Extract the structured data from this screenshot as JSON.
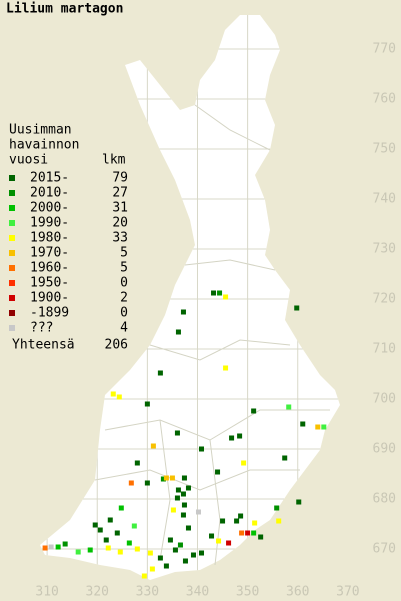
{
  "title": "Lilium martagon",
  "legend": {
    "heading": [
      "Uusimman",
      "havainnon",
      "vuosi"
    ],
    "count_heading": "lkm",
    "classes": [
      {
        "label": "2015-",
        "count": 79,
        "color": "#006400"
      },
      {
        "label": "2010-",
        "count": 27,
        "color": "#009000"
      },
      {
        "label": "2000-",
        "count": 31,
        "color": "#00c000"
      },
      {
        "label": "1990-",
        "count": 20,
        "color": "#40f040"
      },
      {
        "label": "1980-",
        "count": 33,
        "color": "#ffff00"
      },
      {
        "label": "1970-",
        "count": 5,
        "color": "#f8c000"
      },
      {
        "label": "1960-",
        "count": 5,
        "color": "#ff7000"
      },
      {
        "label": "1950-",
        "count": 0,
        "color": "#ff3000"
      },
      {
        "label": "1900-",
        "count": 2,
        "color": "#d00000"
      },
      {
        "label": "-1899",
        "count": 0,
        "color": "#900000"
      },
      {
        "label": "???",
        "count": 4,
        "color": "#c8c8c8"
      }
    ],
    "total_label": "Yhteensä",
    "total": 206
  },
  "axes": {
    "xlim": [
      300.6,
      380.6
    ],
    "ylim": [
      659.6,
      779.8
    ],
    "xticks": [
      310,
      320,
      330,
      340,
      350,
      360,
      370
    ],
    "yticks": [
      670,
      680,
      690,
      700,
      710,
      720,
      730,
      740,
      750,
      760,
      770
    ]
  },
  "observations": [
    {
      "x": 343.2,
      "y": 721.2,
      "class": 0
    },
    {
      "x": 344.4,
      "y": 721.2,
      "class": 1
    },
    {
      "x": 345.6,
      "y": 720.4,
      "class": 4
    },
    {
      "x": 336.2,
      "y": 713.4,
      "class": 0
    },
    {
      "x": 337.2,
      "y": 717.4,
      "class": 0
    },
    {
      "x": 359.8,
      "y": 718.2,
      "class": 0
    },
    {
      "x": 345.6,
      "y": 706.2,
      "class": 4
    },
    {
      "x": 332.6,
      "y": 705.2,
      "class": 0
    },
    {
      "x": 323.2,
      "y": 701,
      "class": 4
    },
    {
      "x": 324.4,
      "y": 700.4,
      "class": 4
    },
    {
      "x": 330,
      "y": 699,
      "class": 0
    },
    {
      "x": 358.2,
      "y": 698.4,
      "class": 3
    },
    {
      "x": 351.2,
      "y": 697.6,
      "class": 0
    },
    {
      "x": 361,
      "y": 695,
      "class": 0
    },
    {
      "x": 364,
      "y": 694.4,
      "class": 5
    },
    {
      "x": 365.2,
      "y": 694.4,
      "class": 3
    },
    {
      "x": 336,
      "y": 693.2,
      "class": 0
    },
    {
      "x": 346.8,
      "y": 692.2,
      "class": 0
    },
    {
      "x": 348.4,
      "y": 692.6,
      "class": 0
    },
    {
      "x": 331.2,
      "y": 690.6,
      "class": 5
    },
    {
      "x": 340.8,
      "y": 690,
      "class": 0
    },
    {
      "x": 357.4,
      "y": 688.2,
      "class": 0
    },
    {
      "x": 349.2,
      "y": 687.2,
      "class": 4
    },
    {
      "x": 328,
      "y": 687.2,
      "class": 0
    },
    {
      "x": 344,
      "y": 685.4,
      "class": 0
    },
    {
      "x": 333.2,
      "y": 684,
      "class": 1
    },
    {
      "x": 333.8,
      "y": 684.2,
      "class": 5
    },
    {
      "x": 335,
      "y": 684.2,
      "class": 5
    },
    {
      "x": 337.4,
      "y": 684.2,
      "class": 0
    },
    {
      "x": 326.8,
      "y": 683.2,
      "class": 6
    },
    {
      "x": 330,
      "y": 683.2,
      "class": 0
    },
    {
      "x": 336.2,
      "y": 681.8,
      "class": 0
    },
    {
      "x": 337.2,
      "y": 681,
      "class": 0
    },
    {
      "x": 338.2,
      "y": 682.2,
      "class": 0
    },
    {
      "x": 336,
      "y": 680.2,
      "class": 0
    },
    {
      "x": 337.4,
      "y": 678.8,
      "class": 0
    },
    {
      "x": 360.2,
      "y": 679.4,
      "class": 0
    },
    {
      "x": 324.8,
      "y": 678.2,
      "class": 2
    },
    {
      "x": 335.2,
      "y": 677.8,
      "class": 4
    },
    {
      "x": 340.2,
      "y": 677.4,
      "class": 10
    },
    {
      "x": 337.2,
      "y": 676.8,
      "class": 0
    },
    {
      "x": 348.6,
      "y": 676.6,
      "class": 0
    },
    {
      "x": 347.8,
      "y": 675.6,
      "class": 0
    },
    {
      "x": 345,
      "y": 675.6,
      "class": 0
    },
    {
      "x": 351.4,
      "y": 675.2,
      "class": 4
    },
    {
      "x": 356.2,
      "y": 675.6,
      "class": 4
    },
    {
      "x": 355.8,
      "y": 678.2,
      "class": 1
    },
    {
      "x": 327.4,
      "y": 674.6,
      "class": 3
    },
    {
      "x": 342.8,
      "y": 672.6,
      "class": 0
    },
    {
      "x": 344.2,
      "y": 671.6,
      "class": 4
    },
    {
      "x": 346.2,
      "y": 671.2,
      "class": 8
    },
    {
      "x": 348.8,
      "y": 673.2,
      "class": 6
    },
    {
      "x": 350,
      "y": 673.2,
      "class": 8
    },
    {
      "x": 351.2,
      "y": 673.2,
      "class": 2
    },
    {
      "x": 352.6,
      "y": 672.4,
      "class": 0
    },
    {
      "x": 340.8,
      "y": 669.2,
      "class": 0
    },
    {
      "x": 309.6,
      "y": 670.2,
      "class": 6
    },
    {
      "x": 310.8,
      "y": 670.4,
      "class": 10
    },
    {
      "x": 312.2,
      "y": 670.4,
      "class": 2
    },
    {
      "x": 313.6,
      "y": 671,
      "class": 1
    },
    {
      "x": 316.2,
      "y": 669.4,
      "class": 3
    },
    {
      "x": 320.6,
      "y": 673.8,
      "class": 0
    },
    {
      "x": 321.8,
      "y": 671.8,
      "class": 0
    },
    {
      "x": 324,
      "y": 673.2,
      "class": 0
    },
    {
      "x": 326.4,
      "y": 671.2,
      "class": 2
    },
    {
      "x": 328,
      "y": 670,
      "class": 4
    },
    {
      "x": 330.6,
      "y": 669.2,
      "class": 4
    },
    {
      "x": 332.6,
      "y": 668.2,
      "class": 0
    },
    {
      "x": 333.8,
      "y": 666.6,
      "class": 0
    },
    {
      "x": 337.6,
      "y": 667.6,
      "class": 0
    },
    {
      "x": 339.2,
      "y": 668.8,
      "class": 0
    },
    {
      "x": 329.4,
      "y": 664.6,
      "class": 4
    },
    {
      "x": 331,
      "y": 666,
      "class": 4
    },
    {
      "x": 324.6,
      "y": 669.4,
      "class": 4
    },
    {
      "x": 322.2,
      "y": 670.2,
      "class": 4
    },
    {
      "x": 318.6,
      "y": 669.8,
      "class": 2
    },
    {
      "x": 319.6,
      "y": 674.8,
      "class": 0
    },
    {
      "x": 322.6,
      "y": 675.8,
      "class": 0
    },
    {
      "x": 335.6,
      "y": 669.8,
      "class": 0
    },
    {
      "x": 336.6,
      "y": 670.8,
      "class": 1
    },
    {
      "x": 334.6,
      "y": 671.8,
      "class": 0
    },
    {
      "x": 338.2,
      "y": 674.2,
      "class": 0
    }
  ]
}
